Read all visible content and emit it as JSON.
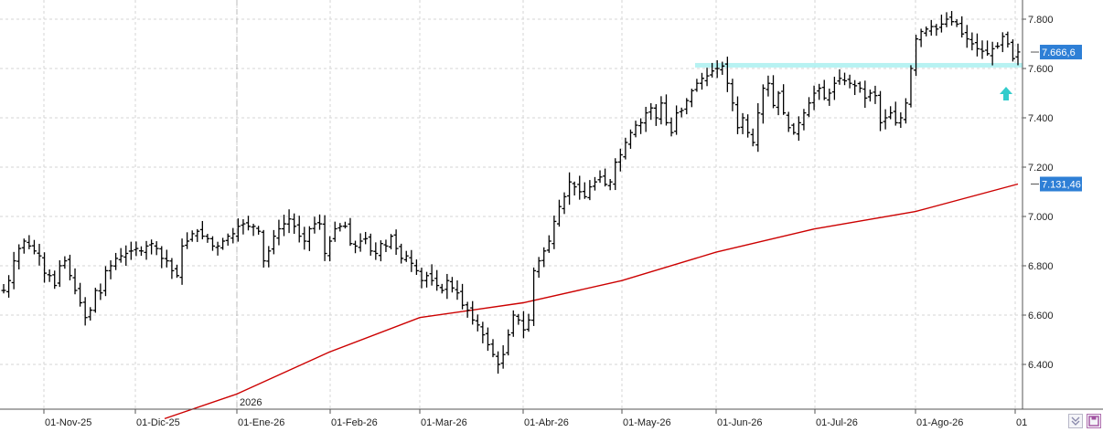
{
  "chart_data": {
    "type": "ohlc",
    "title": "",
    "xlabel": "",
    "ylabel": "",
    "ylim": [
      6200,
      7900
    ],
    "y_ticks": [
      "7.800",
      "7.600",
      "7.400",
      "7.200",
      "7.000",
      "6.800",
      "6.600",
      "6.400"
    ],
    "y_tick_values": [
      7800,
      7600,
      7400,
      7200,
      7000,
      6800,
      6600,
      6400
    ],
    "x_ticks": [
      "01-Nov-25",
      "01-Dic-25",
      "01-Ene-26",
      "01-Feb-26",
      "01-Mar-26",
      "01-Abr-26",
      "01-May-26",
      "01-Jun-26",
      "01-Jul-26",
      "01-Ago-26",
      "01"
    ],
    "year_marker": "2026",
    "grid": true,
    "last_price_label": "7.666,6",
    "last_price_value": 7666.6,
    "ma_label": "7.131,46",
    "ma_value": 7131.46,
    "colors": {
      "bars": "#000000",
      "moving_average": "#cc0000",
      "resistance_zone": "#aaf0f0",
      "arrow": "#33cccc",
      "badge": "#2e7fd6",
      "grid": "#d4d4d4"
    },
    "resistance_level": 7615,
    "arrow_direction": "up",
    "closes": [
      6700,
      6740,
      6820,
      6870,
      6900,
      6880,
      6860,
      6840,
      6770,
      6760,
      6720,
      6800,
      6820,
      6760,
      6700,
      6650,
      6590,
      6620,
      6700,
      6690,
      6780,
      6800,
      6830,
      6840,
      6850,
      6860,
      6870,
      6860,
      6880,
      6890,
      6870,
      6830,
      6820,
      6780,
      6760,
      6880,
      6900,
      6930,
      6940,
      6920,
      6910,
      6880,
      6880,
      6900,
      6920,
      6930,
      6960,
      6970,
      6960,
      6960,
      6940,
      6820,
      6860,
      6920,
      6950,
      6970,
      6990,
      6960,
      6920,
      6900,
      6950,
      6970,
      6970,
      6850,
      6900,
      6950,
      6960,
      6960,
      6890,
      6880,
      6900,
      6910,
      6860,
      6850,
      6890,
      6880,
      6920,
      6870,
      6830,
      6840,
      6810,
      6780,
      6740,
      6760,
      6740,
      6720,
      6700,
      6740,
      6710,
      6690,
      6640,
      6620,
      6580,
      6560,
      6520,
      6480,
      6440,
      6400,
      6440,
      6520,
      6600,
      6580,
      6540,
      6580,
      6780,
      6820,
      6860,
      6900,
      6980,
      7040,
      7080,
      7140,
      7120,
      7100,
      7080,
      7120,
      7140,
      7160,
      7130,
      7140,
      7220,
      7250,
      7300,
      7340,
      7370,
      7380,
      7420,
      7440,
      7400,
      7460,
      7380,
      7340,
      7420,
      7430,
      7470,
      7510,
      7540,
      7560,
      7570,
      7590,
      7600,
      7610,
      7540,
      7460,
      7360,
      7400,
      7340,
      7300,
      7420,
      7520,
      7540,
      7450,
      7500,
      7420,
      7360,
      7340,
      7380,
      7420,
      7460,
      7500,
      7520,
      7480,
      7500,
      7540,
      7560,
      7550,
      7540,
      7530,
      7520,
      7480,
      7500,
      7490,
      7380,
      7400,
      7420,
      7380,
      7400,
      7460,
      7600,
      7720,
      7750,
      7760,
      7770,
      7760,
      7780,
      7800,
      7790,
      7780,
      7740,
      7720,
      7700,
      7680,
      7670,
      7660,
      7680,
      7690,
      7730,
      7700,
      7640,
      7667
    ]
  },
  "ui": {
    "scroll_icon": "double-chevron-down-icon",
    "save_icon": "save-icon"
  }
}
